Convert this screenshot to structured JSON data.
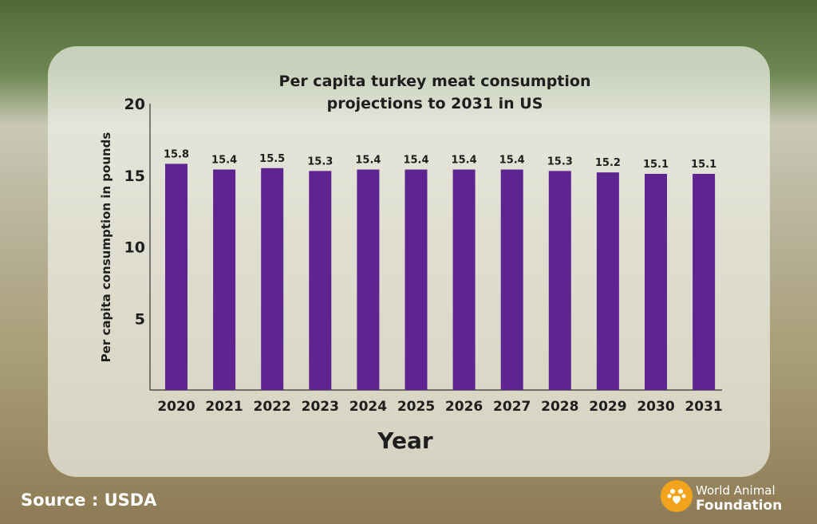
{
  "chart_data": {
    "type": "bar",
    "title_lines": [
      "Per capita turkey meat consumption",
      "projections to 2031 in US"
    ],
    "xlabel": "Year",
    "ylabel": "Per capita consumption in pounds",
    "ylim": [
      0,
      20
    ],
    "yticks": [
      5,
      10,
      15,
      20
    ],
    "categories": [
      "2020",
      "2021",
      "2022",
      "2023",
      "2024",
      "2025",
      "2026",
      "2027",
      "2028",
      "2029",
      "2030",
      "2031"
    ],
    "values": [
      15.8,
      15.4,
      15.5,
      15.3,
      15.4,
      15.4,
      15.4,
      15.4,
      15.3,
      15.2,
      15.1,
      15.1
    ],
    "value_labels": [
      "15.8",
      "15.4",
      "15.5",
      "15.3",
      "15.4",
      "15.4",
      "15.4",
      "15.4",
      "15.3",
      "15.2",
      "15.1",
      "15.1"
    ],
    "bar_color": "#5e2591",
    "text_color": "#1e1e1e",
    "grid": false,
    "legend": "none"
  },
  "footer": {
    "source": "Source : USDA",
    "brand_line1": "World Animal",
    "brand_line2": "Foundation"
  },
  "icons": {
    "logo": "paw-heart-icon"
  }
}
